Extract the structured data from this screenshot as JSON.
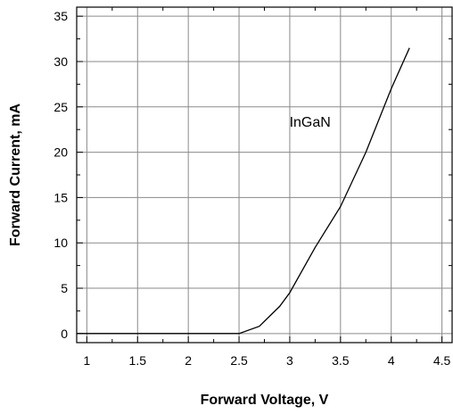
{
  "chart_data": {
    "type": "line",
    "xlabel": "Forward Voltage, V",
    "ylabel": "Forward Current, mA",
    "xlim": [
      0.9,
      4.6
    ],
    "ylim": [
      -1,
      36
    ],
    "xticks": [
      1,
      1.5,
      2,
      2.5,
      3,
      3.5,
      4,
      4.5
    ],
    "xtick_labels": [
      "1",
      "1.5",
      "2",
      "2.5",
      "3",
      "3.5",
      "4",
      "4.5"
    ],
    "yticks": [
      0,
      5,
      10,
      15,
      20,
      25,
      30,
      35
    ],
    "ytick_labels": [
      "0",
      "5",
      "10",
      "15",
      "20",
      "25",
      "30",
      "35"
    ],
    "grid": true,
    "series": [
      {
        "name": "InGaN",
        "x": [
          0.9,
          2.5,
          2.7,
          2.9,
          3.0,
          3.25,
          3.5,
          3.75,
          4.0,
          4.18
        ],
        "y": [
          0,
          0,
          0.8,
          3.0,
          4.5,
          9.5,
          14.0,
          20.0,
          27.0,
          31.5
        ]
      }
    ],
    "annotations": [
      {
        "text": "InGaN",
        "x": 3.2,
        "y": 22.8
      }
    ]
  }
}
